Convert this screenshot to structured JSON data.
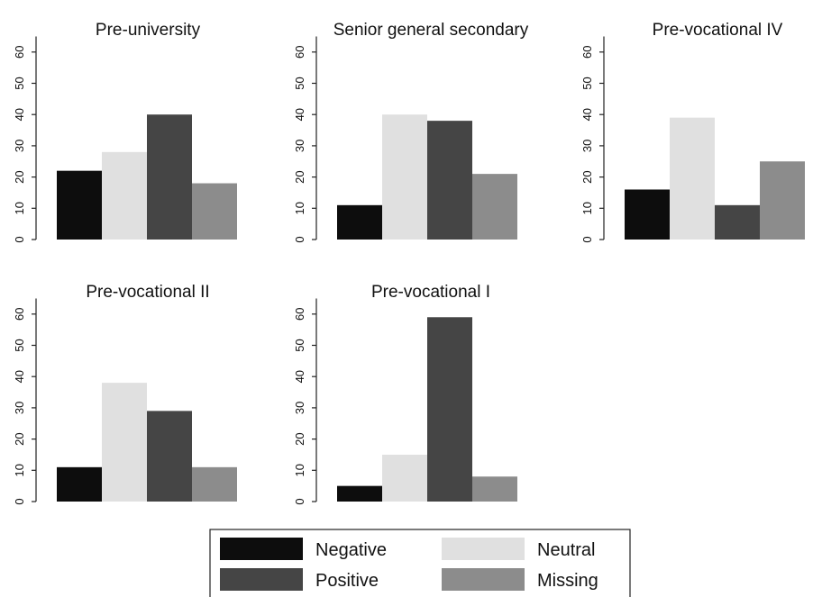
{
  "chart_data": {
    "type": "bar",
    "categories": [
      "Negative",
      "Neutral",
      "Positive",
      "Missing"
    ],
    "colors": {
      "Negative": "#0d0d0d",
      "Neutral": "#e0e0e0",
      "Positive": "#454545",
      "Missing": "#8c8c8c"
    },
    "ylim": [
      0,
      65
    ],
    "yticks": [
      0,
      10,
      20,
      30,
      40,
      50,
      60
    ],
    "grid": false,
    "legend": {
      "position": "bottom-center",
      "entries": [
        "Negative",
        "Neutral",
        "Positive",
        "Missing"
      ]
    },
    "panels": [
      {
        "title": "Pre-university",
        "values": [
          22,
          28,
          40,
          18
        ]
      },
      {
        "title": "Senior general secondary",
        "values": [
          11,
          40,
          38,
          21
        ]
      },
      {
        "title": "Pre-vocational IV",
        "values": [
          16,
          39,
          11,
          25
        ]
      },
      {
        "title": "Pre-vocational II",
        "values": [
          11,
          38,
          29,
          11
        ]
      },
      {
        "title": "Pre-vocational I",
        "values": [
          5,
          15,
          59,
          8
        ]
      }
    ]
  }
}
